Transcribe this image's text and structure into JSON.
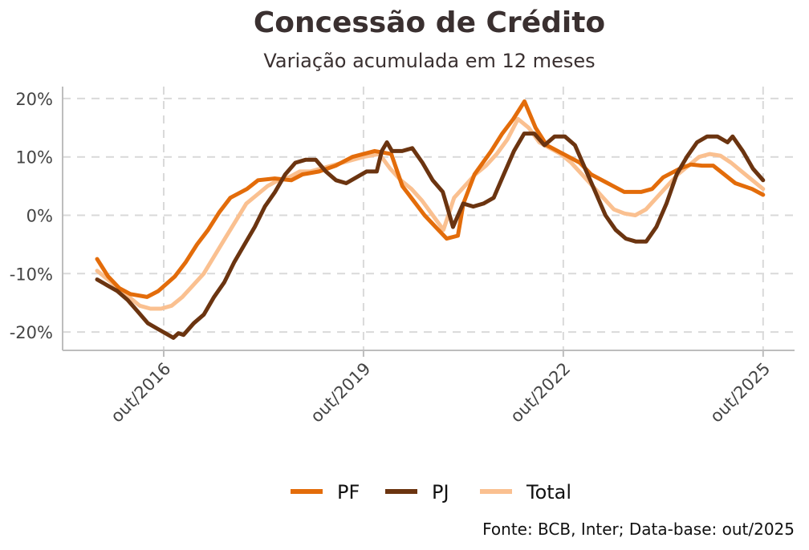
{
  "chart_data": {
    "type": "line",
    "title": "Concessão de Crédito",
    "subtitle": "Variação acumulada em 12 meses",
    "source": "Fonte: BCB, Inter; Data-base: out/2025",
    "xlabel": "",
    "ylabel": "",
    "x_unit": "months since out/2015",
    "xlim": [
      0,
      120
    ],
    "ylim": [
      -23,
      22
    ],
    "y_ticks": [
      -20,
      -10,
      0,
      10,
      20
    ],
    "y_tick_labels": [
      "-20%",
      "-10%",
      "0%",
      "10%",
      "20%"
    ],
    "x_ticks": [
      12,
      48,
      84,
      120
    ],
    "x_tick_labels": [
      "out/2016",
      "out/2019",
      "out/2022",
      "out/2025"
    ],
    "grid": true,
    "legend_position": "bottom",
    "series": [
      {
        "name": "PF",
        "color": "#E36C0A",
        "points": [
          [
            0,
            -7.5
          ],
          [
            2,
            -10.5
          ],
          [
            4,
            -12.5
          ],
          [
            6,
            -13.5
          ],
          [
            9,
            -14
          ],
          [
            11,
            -13
          ],
          [
            14,
            -10.5
          ],
          [
            16,
            -8
          ],
          [
            18,
            -5
          ],
          [
            20,
            -2.5
          ],
          [
            22,
            0.5
          ],
          [
            24,
            3
          ],
          [
            27,
            4.5
          ],
          [
            29,
            6
          ],
          [
            32,
            6.3
          ],
          [
            35,
            6
          ],
          [
            37,
            7
          ],
          [
            40,
            7.5
          ],
          [
            43,
            8.5
          ],
          [
            46,
            10
          ],
          [
            48,
            10.5
          ],
          [
            50,
            11
          ],
          [
            53,
            10.5
          ],
          [
            55,
            5
          ],
          [
            57,
            2.5
          ],
          [
            59,
            0
          ],
          [
            61,
            -2
          ],
          [
            63,
            -4
          ],
          [
            65,
            -3.5
          ],
          [
            66,
            2
          ],
          [
            68,
            7
          ],
          [
            71,
            11
          ],
          [
            73,
            14
          ],
          [
            75,
            16.5
          ],
          [
            77,
            19.5
          ],
          [
            79,
            15
          ],
          [
            81,
            12
          ],
          [
            84,
            10.5
          ],
          [
            87,
            9
          ],
          [
            89,
            7
          ],
          [
            92,
            5.5
          ],
          [
            95,
            4
          ],
          [
            98,
            4
          ],
          [
            100,
            4.5
          ],
          [
            102,
            6.5
          ],
          [
            105,
            8
          ],
          [
            107,
            8.7
          ],
          [
            109,
            8.5
          ],
          [
            111,
            8.5
          ],
          [
            113,
            7
          ],
          [
            115,
            5.5
          ],
          [
            118,
            4.5
          ],
          [
            120,
            3.5
          ]
        ]
      },
      {
        "name": "PJ",
        "color": "#6B3410",
        "points": [
          [
            0,
            -11
          ],
          [
            2,
            -12
          ],
          [
            4,
            -13
          ],
          [
            6,
            -14.5
          ],
          [
            8,
            -16.5
          ],
          [
            10,
            -18.5
          ],
          [
            12,
            -19.5
          ],
          [
            14,
            -20.5
          ],
          [
            15,
            -21
          ],
          [
            16,
            -20.2
          ],
          [
            17,
            -20.5
          ],
          [
            19,
            -18.5
          ],
          [
            21,
            -17
          ],
          [
            23,
            -14
          ],
          [
            25,
            -11.5
          ],
          [
            27,
            -8
          ],
          [
            29,
            -5
          ],
          [
            31,
            -2
          ],
          [
            33,
            1.5
          ],
          [
            35,
            4
          ],
          [
            37,
            7
          ],
          [
            39,
            9
          ],
          [
            41,
            9.5
          ],
          [
            43,
            9.5
          ],
          [
            45,
            7.5
          ],
          [
            47,
            6
          ],
          [
            49,
            5.5
          ],
          [
            51,
            6.5
          ],
          [
            53,
            7.5
          ],
          [
            55,
            7.5
          ],
          [
            56,
            11
          ],
          [
            57,
            12.5
          ],
          [
            58,
            11
          ],
          [
            60,
            11
          ],
          [
            62,
            11.5
          ],
          [
            64,
            9
          ],
          [
            66,
            6
          ],
          [
            68,
            4
          ],
          [
            69,
            1
          ],
          [
            70,
            -2
          ],
          [
            72,
            2
          ],
          [
            74,
            1.5
          ],
          [
            76,
            2
          ],
          [
            78,
            3
          ],
          [
            80,
            7
          ],
          [
            82,
            11
          ],
          [
            84,
            14
          ],
          [
            86,
            14
          ],
          [
            88,
            12
          ],
          [
            90,
            13.5
          ],
          [
            92,
            13.5
          ],
          [
            94,
            12
          ],
          [
            96,
            8
          ],
          [
            98,
            4
          ],
          [
            100,
            0
          ],
          [
            102,
            -2.5
          ],
          [
            104,
            -4
          ],
          [
            106,
            -4.5
          ],
          [
            108,
            -4.5
          ],
          [
            110,
            -2
          ],
          [
            112,
            2
          ],
          [
            114,
            7
          ],
          [
            116,
            10
          ],
          [
            118,
            12.5
          ],
          [
            120,
            13.5
          ],
          [
            122,
            13.5
          ],
          [
            124,
            12.5
          ],
          [
            125,
            13.5
          ],
          [
            127,
            11
          ],
          [
            129,
            8
          ],
          [
            131,
            6
          ]
        ]
      },
      {
        "name": "Total",
        "color": "#FAC090",
        "points": [
          [
            0,
            -9.5
          ],
          [
            2,
            -11
          ],
          [
            4,
            -12.5
          ],
          [
            6,
            -14
          ],
          [
            8,
            -15.5
          ],
          [
            10,
            -16
          ],
          [
            12,
            -16
          ],
          [
            14,
            -15.5
          ],
          [
            16,
            -14
          ],
          [
            18,
            -12
          ],
          [
            20,
            -10
          ],
          [
            22,
            -7
          ],
          [
            24,
            -4
          ],
          [
            26,
            -1
          ],
          [
            28,
            2
          ],
          [
            30,
            3.5
          ],
          [
            32,
            5
          ],
          [
            34,
            6
          ],
          [
            36,
            6.5
          ],
          [
            38,
            7.5
          ],
          [
            40,
            7.5
          ],
          [
            42,
            8
          ],
          [
            44,
            8.5
          ],
          [
            46,
            9
          ],
          [
            48,
            9.5
          ],
          [
            50,
            10
          ],
          [
            53,
            10.5
          ],
          [
            55,
            8
          ],
          [
            57,
            6
          ],
          [
            59,
            4.5
          ],
          [
            61,
            2.5
          ],
          [
            63,
            0
          ],
          [
            65,
            -2.5
          ],
          [
            67,
            3
          ],
          [
            69,
            5
          ],
          [
            71,
            7
          ],
          [
            73,
            8.5
          ],
          [
            75,
            10.5
          ],
          [
            77,
            13
          ],
          [
            79,
            16.5
          ],
          [
            81,
            15
          ],
          [
            83,
            12.5
          ],
          [
            85,
            11.5
          ],
          [
            87,
            10.5
          ],
          [
            89,
            9
          ],
          [
            91,
            7
          ],
          [
            93,
            5
          ],
          [
            95,
            3
          ],
          [
            97,
            1
          ],
          [
            99,
            0.3
          ],
          [
            101,
            0
          ],
          [
            103,
            1
          ],
          [
            105,
            3
          ],
          [
            107,
            5
          ],
          [
            109,
            7
          ],
          [
            111,
            8.5
          ],
          [
            113,
            10
          ],
          [
            115,
            10.5
          ],
          [
            117,
            10.2
          ],
          [
            119,
            9
          ],
          [
            121,
            7.5
          ],
          [
            123,
            6
          ],
          [
            125,
            4.5
          ]
        ]
      }
    ]
  }
}
